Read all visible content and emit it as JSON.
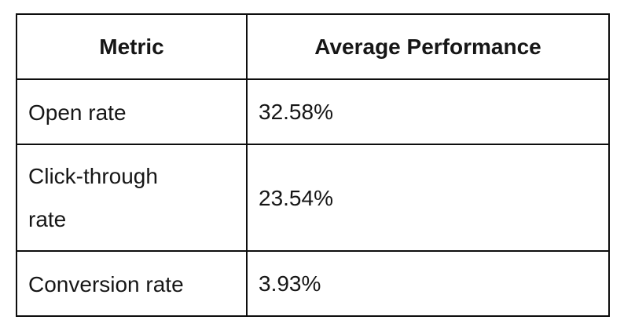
{
  "table": {
    "columns": [
      {
        "label": "Metric"
      },
      {
        "label": "Average Performance"
      }
    ],
    "rows": [
      {
        "metric": "Open rate",
        "value": "32.58%"
      },
      {
        "metric": "Click-through rate",
        "value": "23.54%"
      },
      {
        "metric": "Conversion rate",
        "value": "3.93%"
      }
    ]
  },
  "colors": {
    "border": "#0d0d0d",
    "text": "#161616",
    "background": "#ffffff"
  },
  "chart_data": {
    "type": "table",
    "title": "",
    "columns": [
      "Metric",
      "Average Performance"
    ],
    "rows": [
      [
        "Open rate",
        "32.58%"
      ],
      [
        "Click-through rate",
        "23.54%"
      ],
      [
        "Conversion rate",
        "3.93%"
      ]
    ],
    "series": [
      {
        "name": "Average Performance",
        "categories": [
          "Open rate",
          "Click-through rate",
          "Conversion rate"
        ],
        "values": [
          32.58,
          23.54,
          3.93
        ]
      }
    ],
    "unit": "%"
  }
}
